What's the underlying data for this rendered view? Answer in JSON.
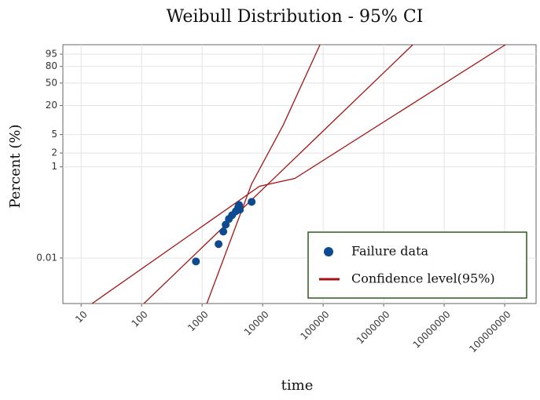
{
  "chart_data": {
    "type": "weibull",
    "title": "Weibull Distribution - 95% CI",
    "x_label": "time",
    "y_label": "Percent (%)",
    "xscale": "log",
    "yscale": "weibull",
    "grid": true,
    "legend": "lower right",
    "xlim": [
      5,
      330000000
    ],
    "xticks": [
      10,
      100,
      1000,
      10000,
      100000,
      1000000,
      10000000,
      100000000
    ],
    "ylim": [
      0.001,
      99.2
    ],
    "yticks": [
      0.01,
      1,
      2,
      5,
      20,
      50,
      80,
      95
    ],
    "series": [
      {
        "name": "Failure data",
        "color": "#0d4a8f",
        "x": [
          790,
          1870,
          2240,
          2450,
          2770,
          3120,
          3610,
          3950,
          4070,
          4200,
          6580
        ],
        "values": [
          0.0084,
          0.0202,
          0.038,
          0.054,
          0.072,
          0.087,
          0.106,
          0.13,
          0.146,
          0.115,
          0.171
        ]
      }
    ],
    "bounds": {
      "name": "Confidence level(95%)",
      "color": "#a31515",
      "curves": [
        {
          "x": [
            109,
            3030000
          ],
          "values": [
            0.001,
            99.2
          ]
        },
        {
          "x": [
            15.2,
            8870,
            34000,
            103000000
          ],
          "values": [
            0.001,
            0.375,
            0.557,
            99.2
          ]
        },
        {
          "x": [
            1197,
            6580,
            21800,
            88700
          ],
          "values": [
            0.001,
            0.423,
            7.9,
            99.2
          ]
        }
      ]
    }
  }
}
